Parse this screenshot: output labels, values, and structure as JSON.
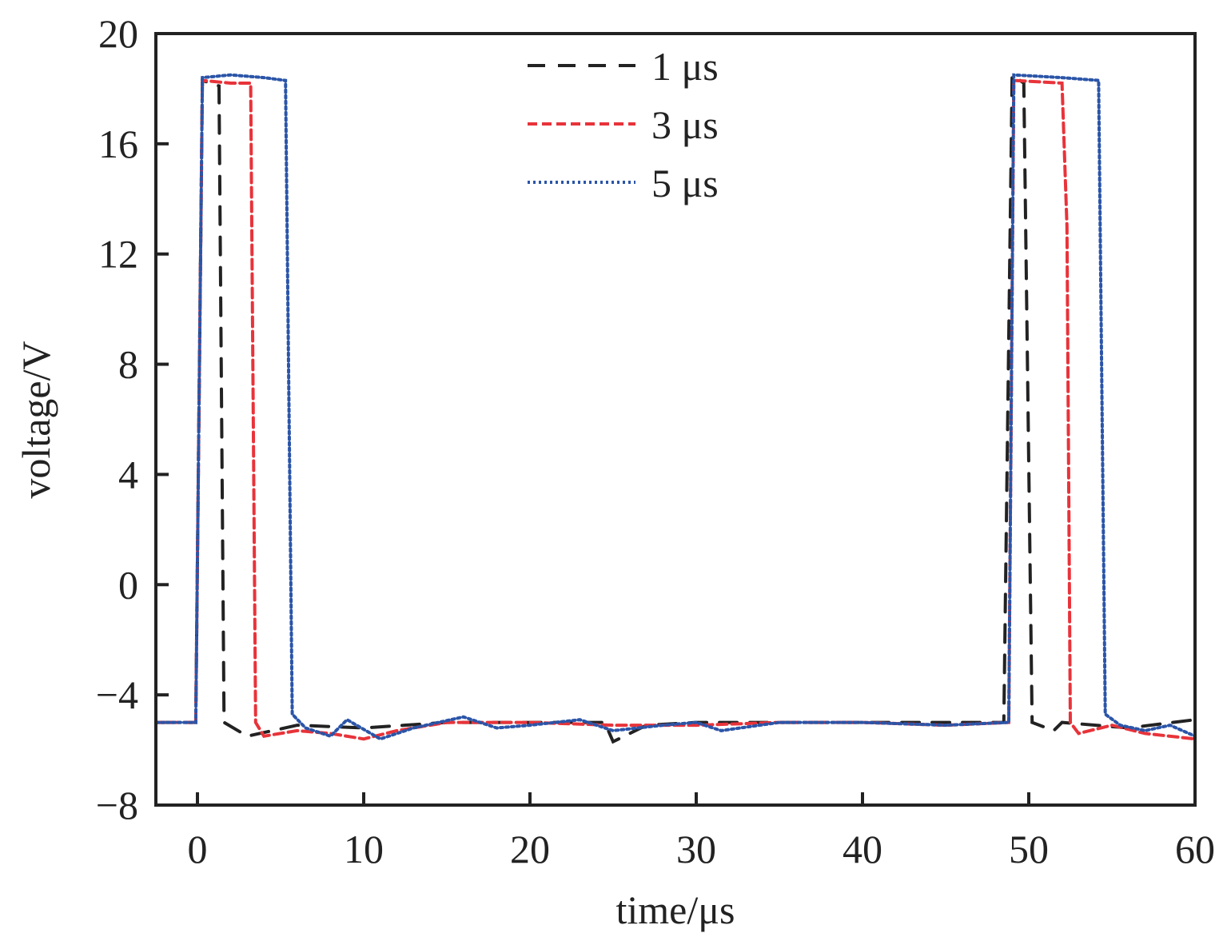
{
  "chart_data": {
    "type": "line",
    "title": "",
    "xlabel": "time/μs",
    "ylabel": "voltage/V",
    "xlim": [
      -2.5,
      60
    ],
    "ylim": [
      -8,
      20
    ],
    "xticks": [
      0,
      10,
      20,
      30,
      40,
      50,
      60
    ],
    "yticks": [
      -8,
      -4,
      0,
      4,
      8,
      12,
      16,
      20
    ],
    "xtick_labels": [
      "0",
      "10",
      "20",
      "30",
      "40",
      "50",
      "60"
    ],
    "ytick_labels": [
      "−8",
      "−4",
      "0",
      "4",
      "8",
      "12",
      "16",
      "20"
    ],
    "grid": false,
    "legend_position": "top-center",
    "series": [
      {
        "name": "1 μs",
        "color": "#222222",
        "dash": "dashed",
        "x": [
          -2.5,
          -0.1,
          0.3,
          1.3,
          1.6,
          3,
          6,
          10,
          15,
          20,
          24.5,
          25,
          27,
          30,
          35,
          40,
          45,
          48.5,
          49.0,
          49.7,
          50.2,
          51.5,
          52,
          56,
          60
        ],
        "y": [
          -5,
          -5,
          18.3,
          18.1,
          -5,
          -5.5,
          -5.1,
          -5.2,
          -5,
          -5,
          -5,
          -5.7,
          -5.1,
          -5,
          -5,
          -5,
          -5,
          -5,
          18.5,
          18.2,
          -5,
          -5.3,
          -5,
          -5.2,
          -4.9
        ]
      },
      {
        "name": "3 μs",
        "color": "#e8333a",
        "dash": "short-dashed",
        "x": [
          -2.5,
          -0.1,
          0.3,
          2.0,
          3.2,
          3.5,
          4,
          6,
          8,
          10,
          12,
          15,
          20,
          25,
          30,
          35,
          40,
          45,
          48.8,
          49.1,
          52.0,
          52.3,
          52.5,
          53,
          55,
          57,
          60
        ],
        "y": [
          -5,
          -5,
          18.3,
          18.2,
          18.2,
          -5,
          -5.5,
          -5.3,
          -5.4,
          -5.6,
          -5.3,
          -5,
          -5,
          -5.1,
          -5.1,
          -5,
          -5,
          -5.1,
          -5,
          18.3,
          18.2,
          13,
          -5,
          -5.4,
          -5.1,
          -5.4,
          -5.6
        ]
      },
      {
        "name": "5 μs",
        "color": "#2b55a8",
        "dash": "dotted",
        "x": [
          -2.5,
          -0.1,
          0.3,
          2,
          4,
          5.3,
          5.7,
          6.5,
          8,
          9,
          11,
          13,
          16,
          18,
          20,
          23,
          25,
          28,
          30,
          31.5,
          35,
          40,
          45,
          48.8,
          49.1,
          52,
          54.2,
          54.6,
          55.5,
          57,
          58.5,
          60
        ],
        "y": [
          -5,
          -5,
          18.4,
          18.5,
          18.4,
          18.3,
          -4.7,
          -5.2,
          -5.5,
          -4.9,
          -5.6,
          -5.2,
          -4.8,
          -5.2,
          -5.1,
          -4.9,
          -5.3,
          -5.1,
          -5,
          -5.3,
          -5,
          -5,
          -5.1,
          -5,
          18.5,
          18.4,
          18.3,
          -4.7,
          -5.1,
          -5.3,
          -5.1,
          -5.5
        ]
      }
    ]
  }
}
